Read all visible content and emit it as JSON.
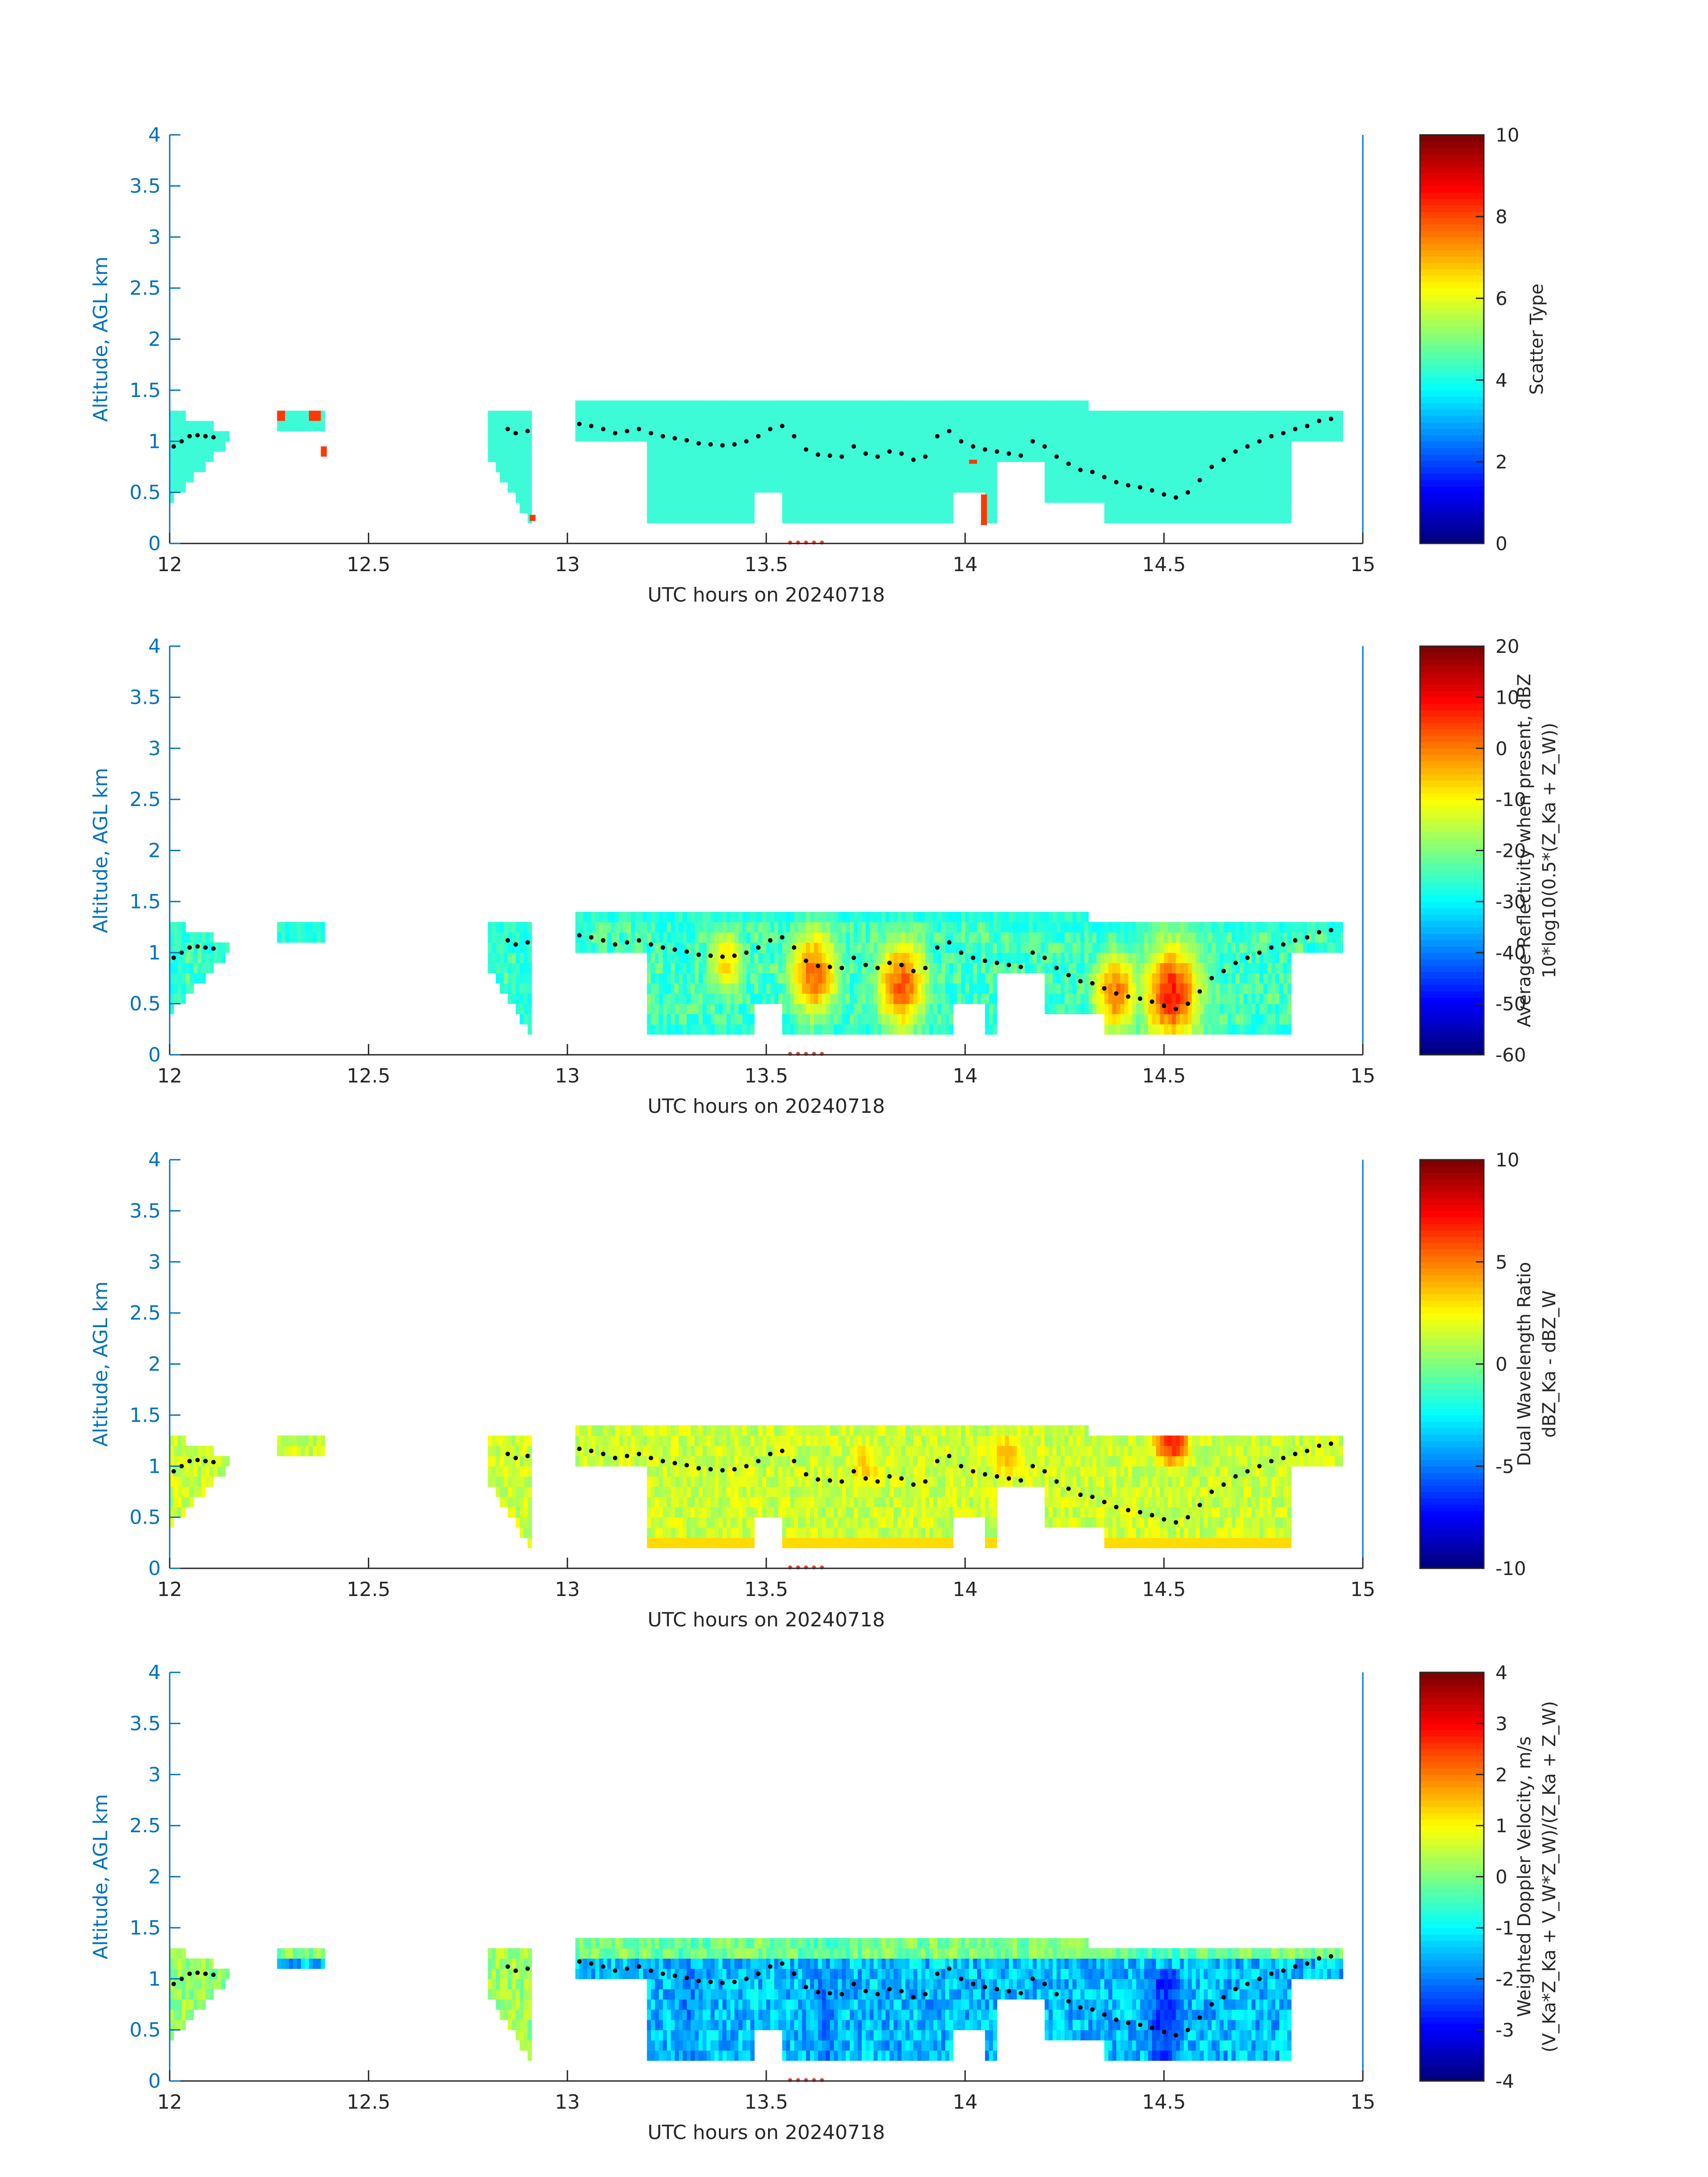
{
  "colors": {
    "axis": "#0072BD",
    "text": "#262626",
    "profile_dot": "#000000",
    "marker": "#E8402B",
    "scatter_fill": "#3EFBD8",
    "scatter_flag": "#E8402B"
  },
  "colormap": "jet",
  "chart_data": [
    {
      "type": "heatmap",
      "title": "",
      "xlabel": "UTC hours on 20240718",
      "ylabel": "Altitude, AGL km",
      "xlim": [
        12,
        15
      ],
      "ylim": [
        0,
        4
      ],
      "xticks": [
        "12",
        "12.5",
        "13",
        "13.5",
        "14",
        "14.5",
        "15"
      ],
      "yticks": [
        "0",
        "0.5",
        "1",
        "1.5",
        "2",
        "2.5",
        "3",
        "3.5",
        "4"
      ],
      "colorbar": {
        "label_lines": [
          "Scatter Type"
        ],
        "range": [
          0,
          10
        ],
        "ticks": [
          "0",
          "2",
          "4",
          "6",
          "8",
          "10"
        ]
      },
      "dominant_value": 3.6,
      "flag_value": 8.2,
      "flag_boxes": [
        {
          "x": [
            12.27,
            12.29
          ],
          "y": [
            1.2,
            1.3
          ]
        },
        {
          "x": [
            12.35,
            12.38
          ],
          "y": [
            1.2,
            1.3
          ]
        },
        {
          "x": [
            12.38,
            12.395
          ],
          "y": [
            0.85,
            0.95
          ]
        },
        {
          "x": [
            12.905,
            12.92
          ],
          "y": [
            0.22,
            0.28
          ]
        },
        {
          "x": [
            14.01,
            14.03
          ],
          "y": [
            0.78,
            0.82
          ]
        },
        {
          "x": [
            14.04,
            14.055
          ],
          "y": [
            0.18,
            0.48
          ]
        }
      ]
    },
    {
      "type": "heatmap",
      "title": "",
      "xlabel": "UTC hours on 20240718",
      "ylabel": "Altitude, AGL km",
      "xlim": [
        12,
        15
      ],
      "ylim": [
        0,
        4
      ],
      "xticks": [
        "12",
        "12.5",
        "13",
        "13.5",
        "14",
        "14.5",
        "15"
      ],
      "yticks": [
        "0",
        "0.5",
        "1",
        "1.5",
        "2",
        "2.5",
        "3",
        "3.5",
        "4"
      ],
      "colorbar": {
        "label_lines": [
          "Average Reflectivity when present, dBZ",
          "10*log10(0.5*(Z_Ka + Z_W))"
        ],
        "range": [
          -60,
          20
        ],
        "ticks": [
          "-60",
          "-50",
          "-40",
          "-30",
          "-20",
          "-10",
          "0",
          "10",
          "20"
        ]
      },
      "value_model": {
        "edge": -60,
        "core": -25,
        "intense_cores": [
          {
            "x": 13.62,
            "y": 0.8,
            "peak": 2
          },
          {
            "x": 13.84,
            "y": 0.7,
            "peak": 3
          },
          {
            "x": 14.52,
            "y": 0.6,
            "peak": 8
          },
          {
            "x": 14.38,
            "y": 0.6,
            "peak": 0
          },
          {
            "x": 13.4,
            "y": 0.9,
            "peak": -8
          }
        ]
      }
    },
    {
      "type": "heatmap",
      "title": "",
      "xlabel": "UTC hours on 20240718",
      "ylabel": "Altitude, AGL km",
      "xlim": [
        12,
        15
      ],
      "ylim": [
        0,
        4
      ],
      "xticks": [
        "12",
        "12.5",
        "13",
        "13.5",
        "14",
        "14.5",
        "15"
      ],
      "yticks": [
        "0",
        "0.5",
        "1",
        "1.5",
        "2",
        "2.5",
        "3",
        "3.5",
        "4"
      ],
      "colorbar": {
        "label_lines": [
          "Dual Wavelength Ratio",
          "dBZ_Ka - dBZ_W"
        ],
        "range": [
          -10,
          10
        ],
        "ticks": [
          "-10",
          "-5",
          "0",
          "5",
          "10"
        ]
      },
      "value_model": {
        "base": 1.5,
        "hot_cores": [
          {
            "x": 14.52,
            "y": 1.25,
            "peak": 7
          },
          {
            "x": 14.1,
            "y": 1.1,
            "peak": 4
          },
          {
            "x": 13.75,
            "y": 1.0,
            "peak": 3.5
          }
        ]
      }
    },
    {
      "type": "heatmap",
      "title": "",
      "xlabel": "UTC hours on 20240718",
      "ylabel": "Altitude, AGL km",
      "xlim": [
        12,
        15
      ],
      "ylim": [
        0,
        4
      ],
      "xticks": [
        "12",
        "12.5",
        "13",
        "13.5",
        "14",
        "14.5",
        "15"
      ],
      "yticks": [
        "0",
        "-",
        "0.5",
        "1",
        "1.5",
        "2",
        "2.5",
        "3",
        "3.5",
        "4"
      ],
      "colorbar": {
        "label_lines": [
          "Weighted Doppler Velocity, m/s",
          "(V_Ka*Z_Ka + V_W*Z_W)/(Z_Ka + Z_W)"
        ],
        "range": [
          -4,
          4
        ],
        "ticks": [
          "-4",
          "-3",
          "-2",
          "-1",
          "0",
          "1",
          "2",
          "3",
          "4"
        ]
      },
      "value_model": {
        "upper": 0.3,
        "lower": -1.5,
        "fast_cores": [
          {
            "x": 13.3,
            "peak": -2.0
          },
          {
            "x": 13.65,
            "peak": -2.0
          },
          {
            "x": 14.5,
            "peak": -2.6
          }
        ]
      }
    }
  ],
  "shared": {
    "echo_segments": [
      {
        "x0": 12.0,
        "x1": 12.15,
        "top_a": 1.3,
        "top_b": 1.1,
        "bot_a": 0.4,
        "bot_b": 1.0
      },
      {
        "x0": 12.27,
        "x1": 12.39,
        "top_a": 1.3,
        "top_b": 1.3,
        "bot_a": 1.15,
        "bot_b": 1.15
      },
      {
        "x0": 12.8,
        "x1": 12.91,
        "top_a": 1.3,
        "top_b": 1.3,
        "bot_a": 0.85,
        "bot_b": 0.2
      },
      {
        "x0": 13.02,
        "x1": 14.95,
        "top_a": 1.45,
        "top_b": 1.3,
        "bot_a": 0.2,
        "bot_b": 0.2
      }
    ],
    "gaps": [
      {
        "x": [
          13.02,
          13.2
        ],
        "bottom": 1.0
      },
      {
        "x": [
          13.47,
          13.54
        ],
        "bottom": 0.55
      },
      {
        "x": [
          13.97,
          14.05
        ],
        "bottom": 0.5
      },
      {
        "x": [
          14.08,
          14.2
        ],
        "bottom": 0.8
      },
      {
        "x": [
          14.2,
          14.35
        ],
        "bottom": 0.45
      },
      {
        "x": [
          14.82,
          14.95
        ],
        "bottom": 1.0
      }
    ],
    "profile": {
      "x": [
        12.01,
        12.03,
        12.05,
        12.07,
        12.09,
        12.11,
        12.85,
        12.87,
        12.9,
        13.03,
        13.06,
        13.09,
        13.12,
        13.15,
        13.18,
        13.21,
        13.24,
        13.27,
        13.3,
        13.33,
        13.36,
        13.39,
        13.42,
        13.45,
        13.48,
        13.51,
        13.54,
        13.57,
        13.6,
        13.63,
        13.66,
        13.69,
        13.72,
        13.75,
        13.78,
        13.81,
        13.84,
        13.87,
        13.9,
        13.93,
        13.96,
        13.99,
        14.02,
        14.05,
        14.08,
        14.11,
        14.14,
        14.17,
        14.2,
        14.23,
        14.26,
        14.29,
        14.32,
        14.35,
        14.38,
        14.41,
        14.44,
        14.47,
        14.5,
        14.53,
        14.56,
        14.59,
        14.62,
        14.65,
        14.68,
        14.71,
        14.74,
        14.77,
        14.8,
        14.83,
        14.86,
        14.89,
        14.92
      ],
      "y": [
        0.95,
        1.0,
        1.05,
        1.06,
        1.05,
        1.04,
        1.12,
        1.08,
        1.1,
        1.17,
        1.15,
        1.12,
        1.08,
        1.1,
        1.12,
        1.08,
        1.05,
        1.03,
        1.01,
        0.98,
        0.97,
        0.96,
        0.97,
        1.0,
        1.05,
        1.12,
        1.15,
        1.05,
        0.92,
        0.87,
        0.86,
        0.85,
        0.95,
        0.88,
        0.85,
        0.9,
        0.88,
        0.82,
        0.85,
        1.05,
        1.1,
        1.0,
        0.95,
        0.92,
        0.9,
        0.88,
        0.86,
        1.0,
        0.95,
        0.85,
        0.78,
        0.72,
        0.7,
        0.65,
        0.6,
        0.57,
        0.55,
        0.52,
        0.48,
        0.45,
        0.5,
        0.62,
        0.75,
        0.82,
        0.9,
        0.95,
        1.0,
        1.05,
        1.08,
        1.12,
        1.15,
        1.2,
        1.22
      ]
    },
    "marker_x": [
      13.56,
      13.58,
      13.6,
      13.62,
      13.64
    ]
  }
}
